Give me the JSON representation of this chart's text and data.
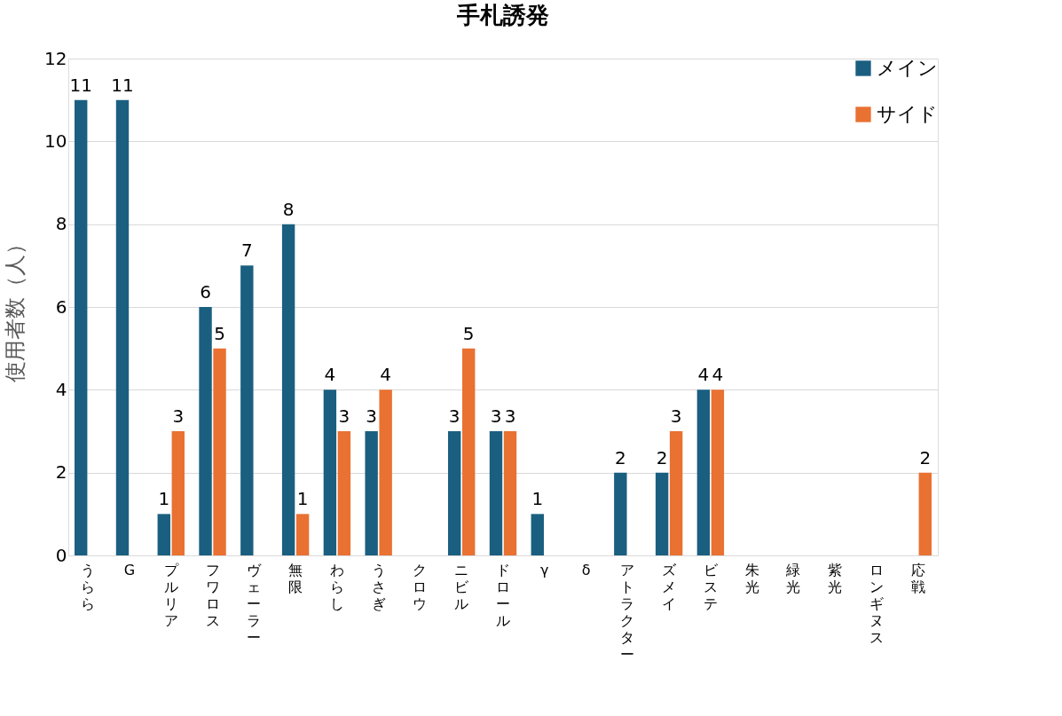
{
  "chart_data": {
    "type": "bar",
    "title": "手札誘発",
    "ylabel": "使用者数（人）",
    "categories": [
      "うらら",
      "G",
      "プルリア",
      "フワロス",
      "ヴェーラー",
      "無限",
      "わらし",
      "うさぎ",
      "クロウ",
      "ニビル",
      "ドロール",
      "γ",
      "δ",
      "アトラクター",
      "ズメイ",
      "ビステ",
      "朱光",
      "緑光",
      "紫光",
      "ロンギヌス",
      "応戦"
    ],
    "series": [
      {
        "name": "メイン",
        "color": "#1a5f80",
        "values": [
          11,
          11,
          1,
          6,
          7,
          8,
          4,
          3,
          null,
          3,
          3,
          1,
          null,
          2,
          2,
          4,
          null,
          null,
          null,
          null,
          null
        ]
      },
      {
        "name": "サイド",
        "color": "#e97132",
        "values": [
          null,
          null,
          3,
          5,
          null,
          1,
          3,
          4,
          null,
          5,
          3,
          null,
          null,
          null,
          3,
          4,
          null,
          null,
          null,
          null,
          2
        ]
      }
    ],
    "ylim": [
      0,
      12
    ],
    "yticks": [
      0,
      2,
      4,
      6,
      8,
      10,
      12
    ],
    "grid": "y",
    "legend": "top right",
    "data_labels": true
  }
}
